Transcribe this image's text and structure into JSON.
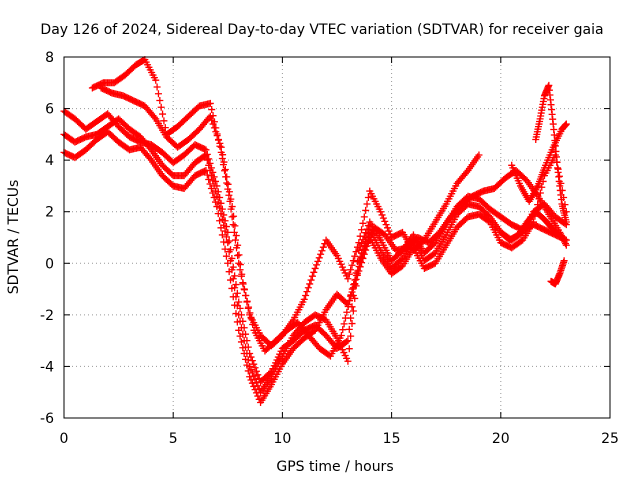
{
  "chart_data": {
    "type": "scatter",
    "title": "Day 126 of 2024, Sidereal Day-to-day VTEC variation (SDTVAR) for receiver gaia",
    "xlabel": "GPS time / hours",
    "ylabel": "SDTVAR / TECUs",
    "xlim": [
      0,
      25
    ],
    "ylim": [
      -6,
      8
    ],
    "xticks": [
      0,
      5,
      10,
      15,
      20,
      25
    ],
    "yticks": [
      -6,
      -4,
      -2,
      0,
      2,
      4,
      6,
      8
    ],
    "xtick_labels": [
      "0",
      "5",
      "10",
      "15",
      "20",
      "25"
    ],
    "ytick_labels": [
      "-6",
      "-4",
      "-2",
      "0",
      "2",
      "4",
      "6",
      "8"
    ],
    "grid": true,
    "marker": "+",
    "color": "#ff0000",
    "series": [
      {
        "x": [
          0.0,
          0.5,
          1.0,
          1.5,
          2.0,
          2.5,
          3.0,
          3.5,
          4.0,
          4.5,
          5.0,
          5.5,
          6.0,
          6.5,
          7.0,
          7.5,
          8.0,
          8.5,
          9.0,
          9.5,
          10.0,
          10.5,
          11.0,
          11.5,
          12.0,
          12.5,
          13.0,
          13.5,
          14.0,
          14.5,
          15.0,
          15.5,
          16.0,
          16.5,
          17.0,
          17.5,
          18.0,
          18.5,
          19.0,
          19.5,
          20.0,
          20.5,
          21.0,
          21.5,
          22.0,
          22.5,
          23.0
        ],
        "y": [
          5.9,
          5.6,
          5.2,
          5.5,
          5.8,
          5.3,
          4.9,
          4.7,
          4.6,
          4.3,
          3.9,
          4.2,
          4.6,
          4.4,
          3.0,
          1.2,
          -1.5,
          -3.5,
          -4.6,
          -4.2,
          -3.3,
          -3.0,
          -2.6,
          -2.4,
          -2.8,
          -3.3,
          -3.0,
          0.5,
          1.6,
          0.9,
          0.1,
          0.5,
          1.1,
          0.4,
          0.8,
          1.5,
          2.2,
          2.6,
          2.5,
          2.1,
          1.8,
          1.5,
          1.3,
          1.5,
          1.3,
          1.1,
          0.9
        ]
      },
      {
        "x": [
          0.0,
          0.5,
          1.0,
          1.5,
          2.0,
          2.5,
          3.0,
          3.5,
          4.0,
          4.5,
          5.0,
          5.5,
          6.0,
          6.5,
          7.0,
          7.5,
          8.0,
          8.5,
          9.0,
          9.5,
          10.0,
          10.5,
          11.0,
          11.5,
          12.0,
          12.5,
          13.0,
          13.5,
          14.0,
          14.5,
          15.0,
          15.5,
          16.0,
          16.5,
          17.0,
          17.5,
          18.0,
          18.5,
          19.0,
          19.5,
          20.0,
          20.5,
          21.0,
          21.5,
          22.0,
          22.5,
          23.0
        ],
        "y": [
          5.0,
          4.7,
          4.9,
          5.0,
          5.3,
          5.6,
          5.2,
          4.9,
          4.4,
          3.8,
          3.4,
          3.4,
          3.9,
          4.2,
          2.6,
          0.8,
          -2.0,
          -4.0,
          -5.0,
          -4.4,
          -3.6,
          -2.8,
          -2.3,
          -2.0,
          -2.2,
          -2.9,
          -3.8,
          0.1,
          1.3,
          0.5,
          -0.2,
          0.2,
          0.9,
          0.1,
          0.4,
          1.1,
          1.9,
          2.3,
          2.2,
          1.8,
          1.2,
          0.9,
          1.2,
          2.0,
          2.3,
          1.8,
          1.5
        ]
      },
      {
        "x": [
          0.0,
          0.5,
          1.0,
          1.5,
          2.0,
          2.5,
          3.0,
          3.5,
          4.0,
          4.5,
          5.0,
          5.5,
          6.0,
          6.5,
          7.0,
          7.5,
          8.0,
          8.5,
          9.0,
          9.5,
          10.0,
          10.5,
          11.0,
          11.5,
          12.0,
          12.5,
          13.0,
          13.5,
          14.0,
          14.5,
          15.0,
          15.5,
          16.0,
          16.5,
          17.0,
          17.5,
          18.0,
          18.5,
          19.0,
          19.5,
          20.0,
          20.5,
          21.0,
          21.5,
          22.0,
          22.5,
          23.0
        ],
        "y": [
          4.3,
          4.1,
          4.4,
          4.8,
          5.1,
          4.7,
          4.4,
          4.5,
          4.0,
          3.4,
          3.0,
          2.9,
          3.4,
          3.6,
          2.2,
          0.0,
          -2.6,
          -4.4,
          -5.4,
          -4.7,
          -3.9,
          -3.3,
          -2.9,
          -2.6,
          -1.8,
          -1.2,
          -1.6,
          -0.3,
          1.0,
          0.2,
          -0.4,
          -0.1,
          0.6,
          -0.2,
          0.0,
          0.7,
          1.4,
          1.8,
          1.9,
          1.6,
          0.8,
          0.6,
          0.9,
          1.6,
          3.4,
          4.2,
          2.0
        ]
      },
      {
        "x": [
          1.3,
          1.8,
          2.3,
          2.8,
          3.3,
          3.7,
          4.2,
          4.7,
          5.2,
          5.7,
          6.2,
          6.7,
          7.2,
          7.6,
          8.0,
          8.5,
          9.0,
          9.5,
          10.0,
          10.5,
          11.0,
          11.5,
          12.0,
          12.5,
          13.0,
          13.5,
          14.0,
          14.5,
          15.0,
          15.5,
          16.0,
          16.5,
          17.0,
          17.5,
          18.0,
          18.5,
          19.0
        ],
        "y": [
          6.8,
          7.0,
          7.0,
          7.3,
          7.7,
          7.9,
          7.1,
          5.0,
          5.3,
          5.7,
          6.1,
          6.2,
          4.3,
          2.4,
          0.0,
          -2.0,
          -2.8,
          -3.2,
          -2.8,
          -2.2,
          -1.4,
          -0.2,
          0.9,
          0.3,
          -0.6,
          0.8,
          2.8,
          2.0,
          1.0,
          1.2,
          0.5,
          0.9,
          1.6,
          2.3,
          3.1,
          3.6,
          4.2
        ]
      },
      {
        "x": [
          1.7,
          2.2,
          2.7,
          3.2,
          3.7,
          4.2,
          4.7,
          5.2,
          5.7,
          6.2,
          6.7,
          7.2,
          7.7,
          8.2,
          8.7,
          9.2,
          9.7,
          10.2,
          10.7,
          11.2,
          11.7,
          12.2,
          12.7,
          13.2,
          13.7,
          14.2,
          14.7,
          15.2,
          15.7,
          16.2,
          16.7,
          17.2,
          17.7,
          18.2,
          18.7,
          19.2,
          19.7,
          20.2,
          20.7,
          21.2,
          21.7,
          22.2,
          22.7,
          23.0
        ],
        "y": [
          6.8,
          6.6,
          6.5,
          6.3,
          6.1,
          5.6,
          4.9,
          4.5,
          4.8,
          5.2,
          5.7,
          4.5,
          2.2,
          -0.8,
          -2.6,
          -3.4,
          -3.0,
          -2.6,
          -2.3,
          -2.8,
          -3.3,
          -3.6,
          -2.8,
          -1.0,
          0.4,
          1.4,
          1.1,
          0.5,
          0.6,
          1.0,
          0.8,
          1.2,
          1.8,
          2.3,
          2.6,
          2.8,
          2.9,
          3.3,
          3.6,
          3.2,
          2.6,
          1.9,
          1.2,
          0.7
        ]
      },
      {
        "x": [
          20.5,
          20.9,
          21.3,
          21.7,
          22.0,
          22.4,
          22.8,
          23.0
        ],
        "y": [
          3.8,
          3.0,
          2.4,
          3.0,
          3.7,
          4.5,
          5.2,
          5.4
        ]
      },
      {
        "x": [
          21.6,
          21.8,
          22.0,
          22.2,
          22.4,
          22.6,
          22.8,
          23.0
        ],
        "y": [
          4.8,
          5.6,
          6.5,
          6.9,
          5.4,
          3.7,
          2.3,
          1.6
        ]
      },
      {
        "x": [
          22.3,
          22.5,
          22.7,
          22.9
        ],
        "y": [
          -0.7,
          -0.8,
          -0.4,
          0.1
        ]
      },
      {
        "x": [
          20.0,
          20.4,
          20.8,
          21.2,
          21.6,
          22.0,
          22.4,
          22.8
        ],
        "y": [
          1.2,
          0.9,
          1.1,
          1.6,
          2.0,
          1.7,
          1.3,
          1.0
        ]
      }
    ]
  }
}
